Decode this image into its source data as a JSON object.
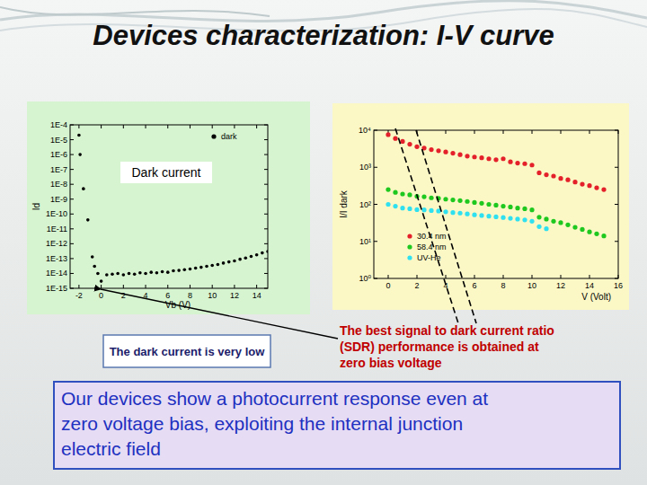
{
  "slide": {
    "title": "Devices characterization: I-V curve",
    "left_caption": "The dark current is very low",
    "right_caption": [
      "The best signal to dark current ratio",
      "(SDR) performance is obtained at",
      "zero bias voltage"
    ],
    "conclusion": [
      "Our devices show a photocurrent response even at",
      "zero voltage bias, exploiting the internal junction",
      "electric field"
    ]
  },
  "chart_data": [
    {
      "type": "scatter",
      "annotation": "Dark current",
      "x_label": "Vb (V)",
      "y_label": "Id",
      "log": "y",
      "grid": false,
      "legend": "top-right",
      "marker": "circle",
      "x": [
        -2,
        -1.9,
        -1.6,
        -1.2,
        -0.8,
        -0.6,
        -0.3,
        0,
        0.5,
        1,
        1.5,
        2,
        2.5,
        3,
        3.5,
        4,
        4.5,
        5,
        5.5,
        6,
        6.5,
        7,
        7.5,
        8,
        8.5,
        9,
        9.5,
        10,
        10.5,
        11,
        11.5,
        12,
        12.5,
        13,
        13.5,
        14,
        14.5,
        15
      ],
      "series": [
        {
          "name": "dark",
          "color": "#000000",
          "values": [
            2e-05,
            1e-06,
            5e-09,
            4e-11,
            1.3e-13,
            3e-14,
            1e-14,
            3e-15,
            8e-15,
            9e-15,
            1e-14,
            8e-15,
            1e-14,
            9e-15,
            1.1e-14,
            1e-14,
            1.2e-14,
            1.1e-14,
            1.3e-14,
            1.2e-14,
            1.5e-14,
            1.6e-14,
            1.8e-14,
            2e-14,
            2.3e-14,
            2.6e-14,
            3e-14,
            3.5e-14,
            4e-14,
            5e-14,
            6e-14,
            7e-14,
            9e-14,
            1.1e-13,
            1.4e-13,
            1.8e-13,
            2.4e-13,
            3e-13
          ]
        }
      ],
      "xlim": [
        -2.8,
        15
      ],
      "xticks": [
        -2,
        0,
        2,
        4,
        6,
        8,
        10,
        12,
        14
      ],
      "ylim": [
        1e-15,
        0.0001
      ],
      "yticks": [
        {
          "value": 1e-15,
          "label": "1E-15"
        },
        {
          "value": 1e-14,
          "label": "1E-14"
        },
        {
          "value": 1e-13,
          "label": "1E-13"
        },
        {
          "value": 1e-12,
          "label": "1E-12"
        },
        {
          "value": 1e-11,
          "label": "1E-11"
        },
        {
          "value": 1e-10,
          "label": "1E-10"
        },
        {
          "value": 1e-09,
          "label": "1E-9"
        },
        {
          "value": 1e-08,
          "label": "1E-8"
        },
        {
          "value": 1e-07,
          "label": "1E-7"
        },
        {
          "value": 1e-06,
          "label": "1E-6"
        },
        {
          "value": 1e-05,
          "label": "1E-5"
        },
        {
          "value": 0.0001,
          "label": "1E-4"
        }
      ]
    },
    {
      "type": "scatter",
      "x_label": "V (Volt)",
      "y_label": "I/I dark",
      "log": "y",
      "grid": false,
      "legend": "bottom-left",
      "marker": "circle",
      "x": [
        0,
        0.5,
        1,
        1.5,
        2,
        2.5,
        3,
        3.5,
        4,
        4.5,
        5,
        5.5,
        6,
        6.5,
        7,
        7.5,
        8,
        8.5,
        9,
        9.5,
        10,
        10.5,
        11,
        11.5,
        12,
        12.5,
        13,
        13.5,
        14,
        14.5,
        15
      ],
      "series": [
        {
          "name": "30.4 nm",
          "color": "#e4202a",
          "values": [
            7600,
            6000,
            5000,
            4200,
            3600,
            3300,
            3000,
            2800,
            2600,
            2400,
            2200,
            2000,
            1900,
            1800,
            1700,
            1600,
            1700,
            1400,
            1300,
            1250,
            1150,
            710,
            630,
            580,
            500,
            460,
            400,
            350,
            320,
            280,
            250
          ]
        },
        {
          "name": "58.4 nm",
          "color": "#1ec81e",
          "values": [
            250,
            210,
            190,
            180,
            165,
            160,
            150,
            145,
            138,
            132,
            126,
            120,
            112,
            107,
            100,
            95,
            89,
            85,
            79,
            76,
            71,
            45,
            40,
            35,
            32,
            28,
            24,
            21,
            18,
            16,
            14
          ]
        },
        {
          "name": "UV-He",
          "color": "#2ee0f0",
          "values": [
            100,
            89,
            79,
            76,
            72,
            71,
            68,
            66,
            63,
            60,
            58,
            55,
            52,
            50,
            48,
            46,
            44,
            42,
            40,
            38,
            35,
            25,
            22,
            null,
            null,
            null,
            null,
            null,
            null,
            null,
            null
          ]
        }
      ],
      "xlim": [
        -1,
        16
      ],
      "xticks": [
        0,
        2,
        4,
        6,
        8,
        10,
        12,
        14,
        16
      ],
      "ylim": [
        1,
        10000
      ],
      "yticks": [
        {
          "value": 1,
          "label": "10⁰"
        },
        {
          "value": 10,
          "label": "10¹"
        },
        {
          "value": 100,
          "label": "10²"
        },
        {
          "value": 1000,
          "label": "10³"
        },
        {
          "value": 10000,
          "label": "10⁴"
        }
      ]
    }
  ]
}
